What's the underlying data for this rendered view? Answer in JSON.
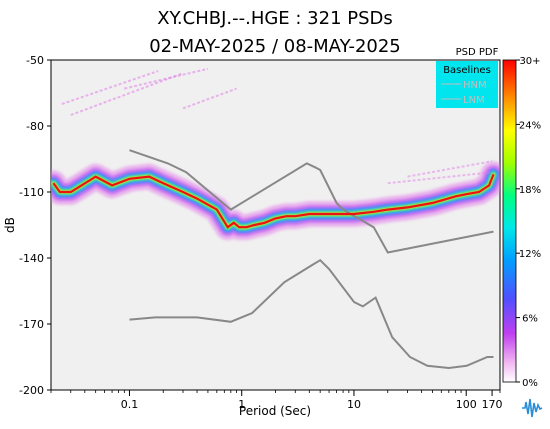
{
  "chart_data": {
    "type": "heatmap",
    "title": "XY.CHBJ.--.HGE : 321 PSDs",
    "subtitle": "02-MAY-2025 / 08-MAY-2025",
    "xlabel": "Period (Sec)",
    "ylabel": "dB",
    "xscale": "log",
    "xlim": [
      0.02,
      200
    ],
    "ylim": [
      -200,
      -50
    ],
    "x_ticks": [
      0.1,
      1,
      10,
      100,
      170
    ],
    "x_tick_labels": [
      "0.1",
      "1",
      "10",
      "100",
      "170"
    ],
    "y_ticks": [
      -50,
      -80,
      -110,
      -140,
      -170,
      -200
    ],
    "y_tick_labels": [
      "-50",
      "-80",
      "-110",
      "-140",
      "-170",
      "-200"
    ],
    "grid": false,
    "legend": {
      "title": "Baselines",
      "placement": "top-right",
      "entries": [
        {
          "label": "HNM",
          "color": "#bfbfbf"
        },
        {
          "label": "LNM",
          "color": "#bfbfbf"
        }
      ]
    },
    "colorbar": {
      "title": "PSD PDF",
      "ticks": [
        "0%",
        "6%",
        "12%",
        "18%",
        "24%",
        "30+"
      ]
    },
    "colors": {
      "plot_bg": "#f0f0f0",
      "legend_bg": "#00e5ee",
      "baseline_gray": "#888888",
      "mode_red": "#ee1111"
    },
    "series": [
      {
        "name": "HNM",
        "x": [
          0.1,
          0.22,
          0.32,
          0.8,
          3.8,
          4.6,
          5.0,
          7.0,
          8.0,
          15.0,
          20.0,
          175.0
        ],
        "y": [
          -91,
          -97,
          -101,
          -118,
          -97,
          -99,
          -100,
          -115,
          -118,
          -126,
          -137.5,
          -128
        ]
      },
      {
        "name": "LNM",
        "x": [
          0.1,
          0.17,
          0.4,
          0.8,
          1.24,
          2.4,
          4.3,
          5.0,
          6.0,
          10.0,
          12.0,
          15.6,
          21.9,
          31.6,
          45.0,
          70.0,
          101.0,
          154.0,
          175.0
        ],
        "y": [
          -168,
          -167,
          -167,
          -169,
          -165,
          -151,
          -143,
          -141,
          -145,
          -160,
          -162,
          -158,
          -176,
          -185,
          -189,
          -190,
          -189,
          -185,
          -185
        ]
      },
      {
        "name": "mode",
        "x": [
          0.021,
          0.024,
          0.03,
          0.05,
          0.07,
          0.1,
          0.15,
          0.2,
          0.3,
          0.4,
          0.6,
          0.75,
          0.85,
          0.95,
          1.1,
          1.3,
          1.6,
          2.0,
          2.5,
          3.0,
          4.0,
          5.0,
          6.0,
          8.0,
          10.0,
          15.0,
          20.0,
          30.0,
          50.0,
          80.0,
          100.0,
          130.0,
          160.0,
          175.0
        ],
        "y": [
          -106,
          -110,
          -110,
          -103,
          -107,
          -104,
          -103,
          -106,
          -110,
          -113,
          -118,
          -126,
          -124,
          -126,
          -126,
          -125,
          -124,
          -122,
          -121,
          -121,
          -120,
          -120,
          -120,
          -120,
          -120,
          -119,
          -118,
          -117,
          -115,
          -112,
          -111,
          -110,
          -107,
          -102
        ]
      }
    ]
  }
}
